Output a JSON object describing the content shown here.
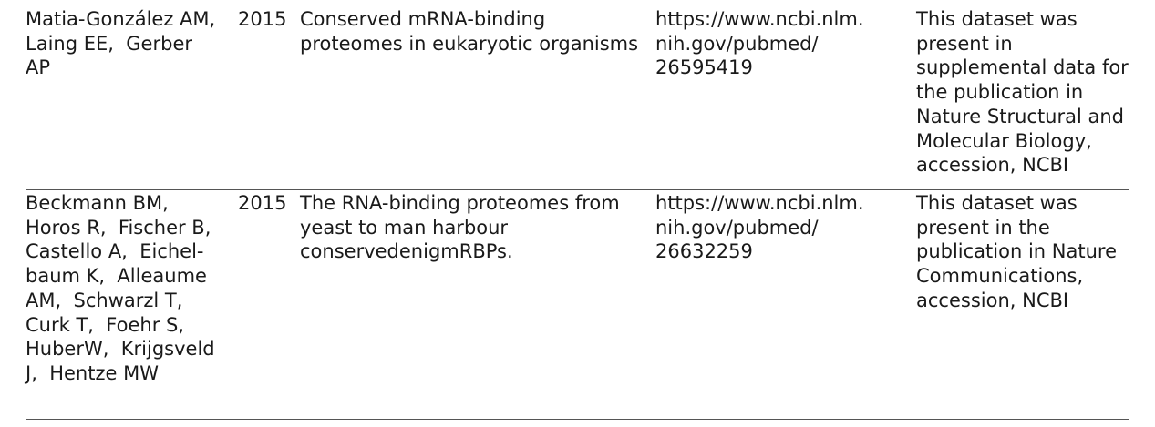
{
  "rows": [
    {
      "authors": "Matia-González AM,\nLaing EE,  Gerber\nAP",
      "year": "2015",
      "title": "Conserved mRNA-binding\nproteomes in eukaryotic organisms",
      "url": "https://www.ncbi.nlm.\nnih.gov/pubmed/\n26595419",
      "note": "This dataset was\npresent in\nsupplemental data for\nthe publication in\nNature Structural and\nMolecular Biology,\naccession, NCBI"
    },
    {
      "authors": "Beckmann BM,\nHoros R,  Fischer B,\nCastello A,  Eichel-\nbaum K,  Alleaume\nAM,  Schwarzl T,\nCurk T,  Foehr S,\nHuberW,  Krijgsveld\nJ,  Hentze MW",
      "year": "2015",
      "title": "The RNA-binding proteomes from\nyeast to man harbour\nconservedenigmRBPs.",
      "url": "https://www.ncbi.nlm.\nnih.gov/pubmed/\n26632259",
      "note": "This dataset was\npresent in the\npublication in Nature\nCommunications,\naccession, NCBI"
    }
  ]
}
